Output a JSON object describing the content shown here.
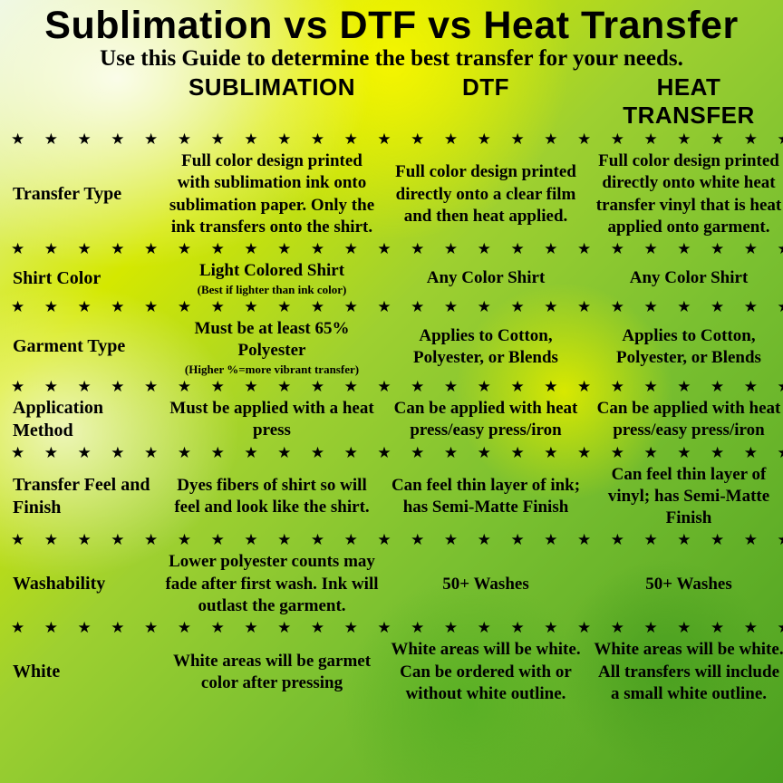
{
  "title": "Sublimation vs DTF vs Heat Transfer",
  "subtitle": "Use this Guide to determine the best transfer for your needs.",
  "columns": {
    "c1": "SUBLIMATION",
    "c2": "DTF",
    "c3": "HEAT TRANSFER"
  },
  "stars": "★ ★ ★ ★ ★ ★ ★ ★ ★ ★ ★ ★ ★ ★ ★ ★ ★ ★ ★ ★ ★ ★ ★ ★ ★ ★ ★ ★ ★ ★ ★ ★ ★ ★ ★ ★ ★",
  "rows": {
    "type": {
      "label": "Transfer Type",
      "c1": "Full color design printed with sublimation ink onto sublimation paper. Only the ink transfers onto the shirt.",
      "c2": "Full color design printed directly onto a clear film and then heat applied.",
      "c3": "Full color design printed directly onto white heat transfer vinyl that is heat applied onto garment."
    },
    "shirt": {
      "label": "Shirt Color",
      "c1": "Light Colored Shirt",
      "c1note": "(Best if lighter than ink color)",
      "c2": "Any Color Shirt",
      "c3": "Any Color Shirt"
    },
    "garment": {
      "label": "Garment Type",
      "c1": "Must be at least 65% Polyester",
      "c1note": "(Higher %=more vibrant transfer)",
      "c2": "Applies to Cotton, Polyester, or Blends",
      "c3": "Applies to Cotton, Polyester, or Blends"
    },
    "app": {
      "label": "Application Method",
      "c1": "Must be applied with a heat press",
      "c2": "Can be applied with heat press/easy press/iron",
      "c3": "Can be applied with heat press/easy press/iron"
    },
    "feel": {
      "label": "Transfer Feel and Finish",
      "c1": "Dyes fibers of shirt so will feel and look like the shirt.",
      "c2": "Can feel thin layer of ink; has Semi-Matte Finish",
      "c3": "Can feel thin layer of vinyl; has Semi-Matte Finish"
    },
    "wash": {
      "label": "Washability",
      "c1": "Lower polyester counts may fade after first wash. Ink will outlast the garment.",
      "c2": "50+ Washes",
      "c3": "50+ Washes"
    },
    "white": {
      "label": "White",
      "c1": "White areas will be garmet color after pressing",
      "c2": "White areas will be white. Can be ordered with or without white outline.",
      "c3": "White areas will be white. All transfers will include a small white outline."
    }
  }
}
